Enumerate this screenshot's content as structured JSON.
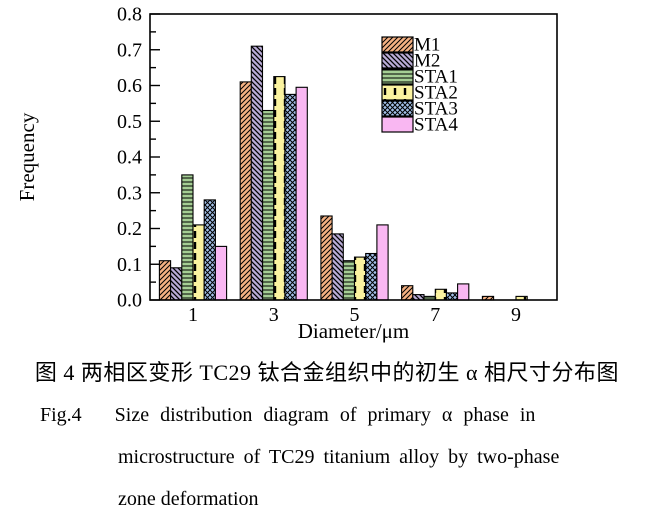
{
  "figure": {
    "caption_zh": "图 4  两相区变形 TC29 钛合金组织中的初生 α 相尺寸分布图",
    "caption_en_line1": "Fig.4   Size distribution diagram of primary α phase in",
    "caption_en_line2": "microstructure of TC29 titanium alloy by two-phase",
    "caption_en_line3": "zone deformation"
  },
  "chart_data": {
    "type": "bar",
    "title": "",
    "xlabel": "Diameter/μm",
    "ylabel": "Frequency",
    "categories": [
      1,
      3,
      5,
      7,
      9
    ],
    "xlim": [
      0,
      10
    ],
    "ylim": [
      0.0,
      0.8
    ],
    "y_major_step": 0.1,
    "y_minor_step": 0.05,
    "y_tick_labels": [
      "0.0",
      "0.1",
      "0.2",
      "0.3",
      "0.4",
      "0.5",
      "0.6",
      "0.7",
      "0.8"
    ],
    "grid": false,
    "frame": true,
    "legend_position": "inside-top-right",
    "series": [
      {
        "name": "M1",
        "color": "#F4B183",
        "pattern": "diag-up",
        "values": [
          0.11,
          0.61,
          0.235,
          0.04,
          0.01
        ]
      },
      {
        "name": "M2",
        "color": "#B9ABD6",
        "pattern": "diag-down",
        "values": [
          0.09,
          0.71,
          0.185,
          0.015,
          0
        ]
      },
      {
        "name": "STA1",
        "color": "#A5CE94",
        "pattern": "horizontal",
        "values": [
          0.35,
          0.53,
          0.11,
          0.01,
          0
        ]
      },
      {
        "name": "STA2",
        "color": "#FBF3A0",
        "pattern": "vert-dash",
        "values": [
          0.21,
          0.625,
          0.12,
          0.03,
          0.01
        ]
      },
      {
        "name": "STA3",
        "color": "#A2C0E8",
        "pattern": "cross-diag",
        "values": [
          0.28,
          0.575,
          0.13,
          0.02,
          0
        ]
      },
      {
        "name": "STA4",
        "color": "#F9B7F2",
        "pattern": "solid",
        "values": [
          0.15,
          0.595,
          0.21,
          0.045,
          0
        ]
      }
    ]
  }
}
